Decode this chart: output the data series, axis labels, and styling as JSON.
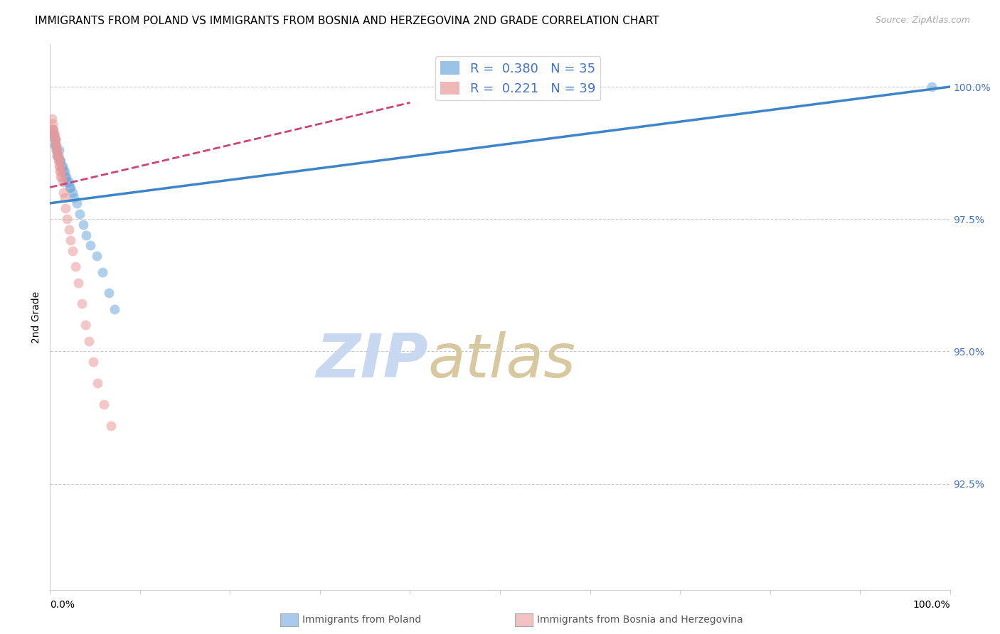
{
  "title": "IMMIGRANTS FROM POLAND VS IMMIGRANTS FROM BOSNIA AND HERZEGOVINA 2ND GRADE CORRELATION CHART",
  "source": "Source: ZipAtlas.com",
  "ylabel": "2nd Grade",
  "ytick_labels": [
    "100.0%",
    "97.5%",
    "95.0%",
    "92.5%"
  ],
  "ytick_values": [
    1.0,
    0.975,
    0.95,
    0.925
  ],
  "xlim": [
    0.0,
    1.0
  ],
  "ylim": [
    0.905,
    1.008
  ],
  "poland_R": 0.38,
  "poland_N": 35,
  "bosnia_R": 0.221,
  "bosnia_N": 39,
  "poland_color": "#6fa8dc",
  "bosnia_color": "#ea9999",
  "poland_line_color": "#3d85c8",
  "bosnia_line_color": "#cc4477",
  "watermark_zip": "ZIP",
  "watermark_atlas": "atlas",
  "watermark_color_zip": "#c8d8f0",
  "watermark_color_atlas": "#d8c8a0",
  "grid_color": "#cccccc",
  "background_color": "#ffffff",
  "title_fontsize": 11,
  "axis_label_fontsize": 10,
  "tick_fontsize": 10,
  "legend_fontsize": 13,
  "marker_size": 10,
  "marker_alpha": 0.55,
  "poland_x": [
    0.003,
    0.004,
    0.004,
    0.005,
    0.005,
    0.006,
    0.006,
    0.007,
    0.008,
    0.009,
    0.01,
    0.011,
    0.012,
    0.013,
    0.014,
    0.015,
    0.016,
    0.017,
    0.018,
    0.019,
    0.021,
    0.022,
    0.023,
    0.025,
    0.027,
    0.03,
    0.033,
    0.037,
    0.04,
    0.045,
    0.052,
    0.058,
    0.065,
    0.072,
    0.98
  ],
  "poland_y": [
    0.992,
    0.991,
    0.991,
    0.99,
    0.989,
    0.99,
    0.989,
    0.988,
    0.987,
    0.987,
    0.988,
    0.986,
    0.986,
    0.985,
    0.985,
    0.984,
    0.984,
    0.983,
    0.983,
    0.982,
    0.982,
    0.981,
    0.981,
    0.98,
    0.979,
    0.978,
    0.976,
    0.974,
    0.972,
    0.97,
    0.968,
    0.965,
    0.961,
    0.958,
    1.0
  ],
  "bosnia_x": [
    0.002,
    0.003,
    0.003,
    0.004,
    0.004,
    0.005,
    0.005,
    0.006,
    0.006,
    0.007,
    0.007,
    0.008,
    0.008,
    0.009,
    0.009,
    0.01,
    0.01,
    0.011,
    0.011,
    0.012,
    0.012,
    0.013,
    0.014,
    0.015,
    0.016,
    0.017,
    0.019,
    0.021,
    0.023,
    0.025,
    0.028,
    0.031,
    0.035,
    0.039,
    0.043,
    0.048,
    0.053,
    0.06,
    0.068
  ],
  "bosnia_y": [
    0.994,
    0.993,
    0.992,
    0.992,
    0.991,
    0.991,
    0.99,
    0.99,
    0.989,
    0.989,
    0.988,
    0.988,
    0.987,
    0.987,
    0.986,
    0.986,
    0.985,
    0.985,
    0.984,
    0.984,
    0.983,
    0.983,
    0.982,
    0.98,
    0.979,
    0.977,
    0.975,
    0.973,
    0.971,
    0.969,
    0.966,
    0.963,
    0.959,
    0.955,
    0.952,
    0.948,
    0.944,
    0.94,
    0.936
  ]
}
